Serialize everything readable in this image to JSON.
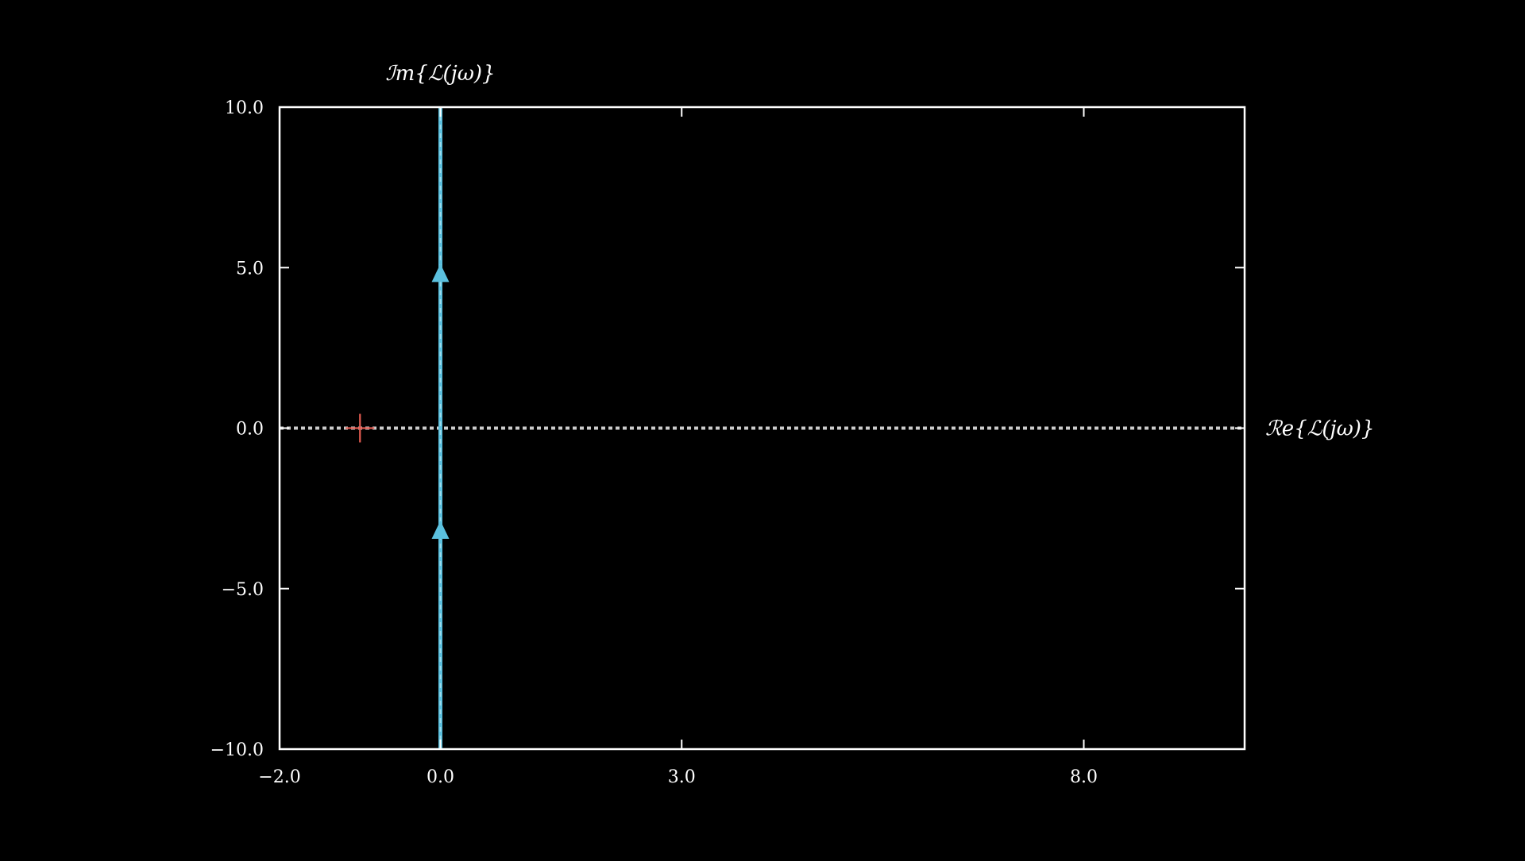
{
  "chart_data": {
    "type": "line",
    "title": "",
    "xlabel": "ℛe{ℒ(jω)}",
    "ylabel": "ℐm{ℒ(jω)}",
    "xlim": [
      -2.0,
      10.0
    ],
    "ylim": [
      -10.0,
      10.0
    ],
    "xticks": [
      {
        "value": -2.0,
        "label": "−2.0"
      },
      {
        "value": 0.0,
        "label": "0.0"
      },
      {
        "value": 3.0,
        "label": "3.0"
      },
      {
        "value": 8.0,
        "label": "8.0"
      }
    ],
    "yticks": [
      {
        "value": 10.0,
        "label": "10.0"
      },
      {
        "value": 5.0,
        "label": "5.0"
      },
      {
        "value": 0.0,
        "label": "0.0"
      },
      {
        "value": -5.0,
        "label": "−5.0"
      },
      {
        "value": -10.0,
        "label": "−10.0"
      }
    ],
    "grid": false,
    "series": [
      {
        "color": "#5bc0de",
        "style": "solid-with-dashed-overlay",
        "x": [
          0.0,
          0.0
        ],
        "y": [
          -10.0,
          10.0
        ],
        "direction_arrows_at_y": [
          4.8,
          -3.2
        ]
      }
    ],
    "reference_lines": [
      {
        "orientation": "horizontal",
        "y": 0.0,
        "color": "#cccccc",
        "style": "dotted"
      }
    ],
    "markers": [
      {
        "x": -1.0,
        "y": 0.0,
        "shape": "plus",
        "color": "#e05a4f"
      }
    ],
    "colors": {
      "background": "#000000",
      "frame": "#ffffff",
      "curve": "#5bc0de",
      "reference": "#cccccc",
      "critical_point": "#e05a4f"
    }
  }
}
